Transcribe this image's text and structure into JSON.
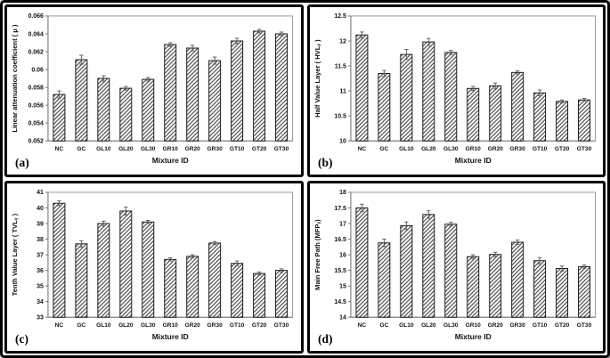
{
  "figure": {
    "xlabel": "Mixture ID",
    "categories": [
      "NC",
      "GC",
      "GL10",
      "GL20",
      "GL30",
      "GR10",
      "GR20",
      "GR30",
      "GT10",
      "GT20",
      "GT30"
    ],
    "panel_labels": [
      "(a)",
      "(b)",
      "(c)",
      "(d)"
    ]
  },
  "colors": {
    "bar_fill": "#ffffff",
    "hatch": "#3b3b3b",
    "bar_edge": "#1c1c1c",
    "axis_box": "#999999",
    "axis_line": "#777777",
    "tick_text": "#111111",
    "error_bar": "#555555",
    "frame": "#000000",
    "background": "#ffffff"
  },
  "chart_data": [
    {
      "type": "bar",
      "panel_label": "(a)",
      "title": "",
      "xlabel": "Mixture ID",
      "ylabel": "Linear attenuation coefficient ( μ )",
      "ylim": [
        0.052,
        0.066
      ],
      "ytick_step": 0.002,
      "grid": false,
      "legend": "none",
      "categories": [
        "NC",
        "GC",
        "GL10",
        "GL20",
        "GL30",
        "GR10",
        "GR20",
        "GR30",
        "GT10",
        "GT20",
        "GT30"
      ],
      "values": [
        0.0572,
        0.0611,
        0.059,
        0.0579,
        0.0589,
        0.0628,
        0.0624,
        0.061,
        0.0632,
        0.0643,
        0.064
      ],
      "errors": [
        0.0004,
        0.0005,
        0.0003,
        0.0002,
        0.0002,
        0.0002,
        0.0003,
        0.0004,
        0.0003,
        0.0002,
        0.0002
      ]
    },
    {
      "type": "bar",
      "panel_label": "(b)",
      "title": "",
      "xlabel": "Mixture ID",
      "ylabel": "Half Value Layer ( HVLᵧ )",
      "ylim": [
        10,
        12.5
      ],
      "ytick_step": 0.5,
      "grid": false,
      "legend": "none",
      "categories": [
        "NC",
        "GC",
        "GL10",
        "GL20",
        "GL30",
        "GR10",
        "GR20",
        "GR30",
        "GT10",
        "GT20",
        "GT30"
      ],
      "values": [
        12.12,
        11.35,
        11.73,
        11.98,
        11.77,
        11.05,
        11.1,
        11.37,
        10.96,
        10.79,
        10.82
      ],
      "errors": [
        0.06,
        0.06,
        0.1,
        0.07,
        0.04,
        0.04,
        0.06,
        0.03,
        0.06,
        0.03,
        0.03
      ]
    },
    {
      "type": "bar",
      "panel_label": "(c)",
      "title": "",
      "xlabel": "Mixture ID",
      "ylabel": "Tenth Value Layer ( TVLᵧ )",
      "ylim": [
        33,
        41
      ],
      "ytick_step": 1,
      "grid": false,
      "legend": "none",
      "categories": [
        "NC",
        "GC",
        "GL10",
        "GL20",
        "GL30",
        "GR10",
        "GR20",
        "GR30",
        "GT10",
        "GT20",
        "GT30"
      ],
      "values": [
        40.3,
        37.7,
        39.0,
        39.8,
        39.1,
        36.7,
        36.9,
        37.75,
        36.45,
        35.8,
        36.0
      ],
      "errors": [
        0.15,
        0.2,
        0.15,
        0.25,
        0.1,
        0.1,
        0.1,
        0.1,
        0.15,
        0.1,
        0.1
      ]
    },
    {
      "type": "bar",
      "panel_label": "(d)",
      "title": "",
      "xlabel": "Mixture ID",
      "ylabel": "Main Free Path (MFPᵧ)",
      "ylim": [
        14,
        18
      ],
      "ytick_step": 0.5,
      "grid": false,
      "legend": "none",
      "categories": [
        "NC",
        "GC",
        "GL10",
        "GL20",
        "GL30",
        "GR10",
        "GR20",
        "GR30",
        "GT10",
        "GT20",
        "GT30"
      ],
      "values": [
        17.5,
        16.38,
        16.93,
        17.29,
        16.98,
        15.94,
        16.01,
        16.4,
        15.81,
        15.56,
        15.62
      ],
      "errors": [
        0.12,
        0.12,
        0.12,
        0.12,
        0.06,
        0.06,
        0.07,
        0.07,
        0.1,
        0.08,
        0.05
      ]
    }
  ]
}
